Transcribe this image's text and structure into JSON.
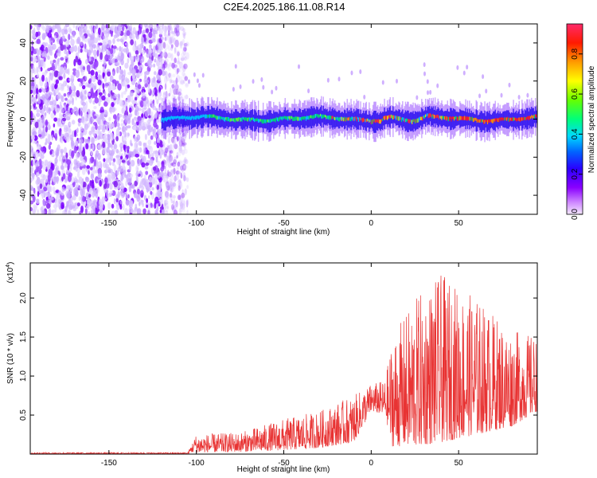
{
  "title": "C2E4.2025.186.11.08.R14",
  "chart_data": [
    {
      "type": "heatmap",
      "xlabel": "Height of straight line (km)",
      "ylabel": "Frequency (Hz)",
      "xlim": [
        -195,
        95
      ],
      "ylim": [
        -50,
        50
      ],
      "xticks": [
        -150,
        -100,
        -50,
        0,
        50
      ],
      "yticks": [
        -40,
        -20,
        0,
        20,
        40
      ],
      "colorbar": {
        "label": "Normalized spectral amplitude",
        "range": [
          0.0,
          0.95
        ],
        "ticks": [
          0.0,
          0.2,
          0.4,
          0.6,
          0.8
        ]
      },
      "regions": [
        {
          "name": "noise",
          "x": [
            -195,
            -105
          ],
          "freq": [
            -50,
            50
          ],
          "amplitude": 0.1
        },
        {
          "name": "signal",
          "x": [
            -120,
            95
          ],
          "freq_center": 0,
          "freq_halfwidth": 6,
          "amplitude_peak": 0.95
        }
      ]
    },
    {
      "type": "line",
      "xlabel": "Height of straight line (km)",
      "ylabel": "SNR (10 * v/v)",
      "y_multiplier": "(x10",
      "y_multiplier_exp": "4",
      "y_multiplier_close": ")",
      "xlim": [
        -195,
        95
      ],
      "ylim": [
        0,
        2.45
      ],
      "xticks": [
        -150,
        -100,
        -50,
        0,
        50
      ],
      "yticks": [
        0.5,
        1.0,
        1.5,
        2.0
      ],
      "ytick_labels": [
        "0.5",
        "1.0",
        "1.5",
        "2.0"
      ],
      "series": [
        {
          "color": "#e83333",
          "envelope": [
            {
              "x": -195,
              "low": 0.0,
              "high": 0.02
            },
            {
              "x": -105,
              "low": 0.0,
              "high": 0.02
            },
            {
              "x": -100,
              "low": 0.02,
              "high": 0.25
            },
            {
              "x": -75,
              "low": 0.03,
              "high": 0.28
            },
            {
              "x": -50,
              "low": 0.05,
              "high": 0.45
            },
            {
              "x": -30,
              "low": 0.08,
              "high": 0.55
            },
            {
              "x": -10,
              "low": 0.15,
              "high": 0.75
            },
            {
              "x": 0,
              "low": 0.55,
              "high": 0.9
            },
            {
              "x": 8,
              "low": 0.5,
              "high": 0.95
            },
            {
              "x": 12,
              "low": 0.1,
              "high": 1.5
            },
            {
              "x": 25,
              "low": 0.1,
              "high": 2.0
            },
            {
              "x": 40,
              "low": 0.15,
              "high": 2.3
            },
            {
              "x": 60,
              "low": 0.25,
              "high": 2.0
            },
            {
              "x": 80,
              "low": 0.35,
              "high": 1.6
            },
            {
              "x": 95,
              "low": 0.55,
              "high": 1.5
            }
          ]
        }
      ]
    }
  ]
}
